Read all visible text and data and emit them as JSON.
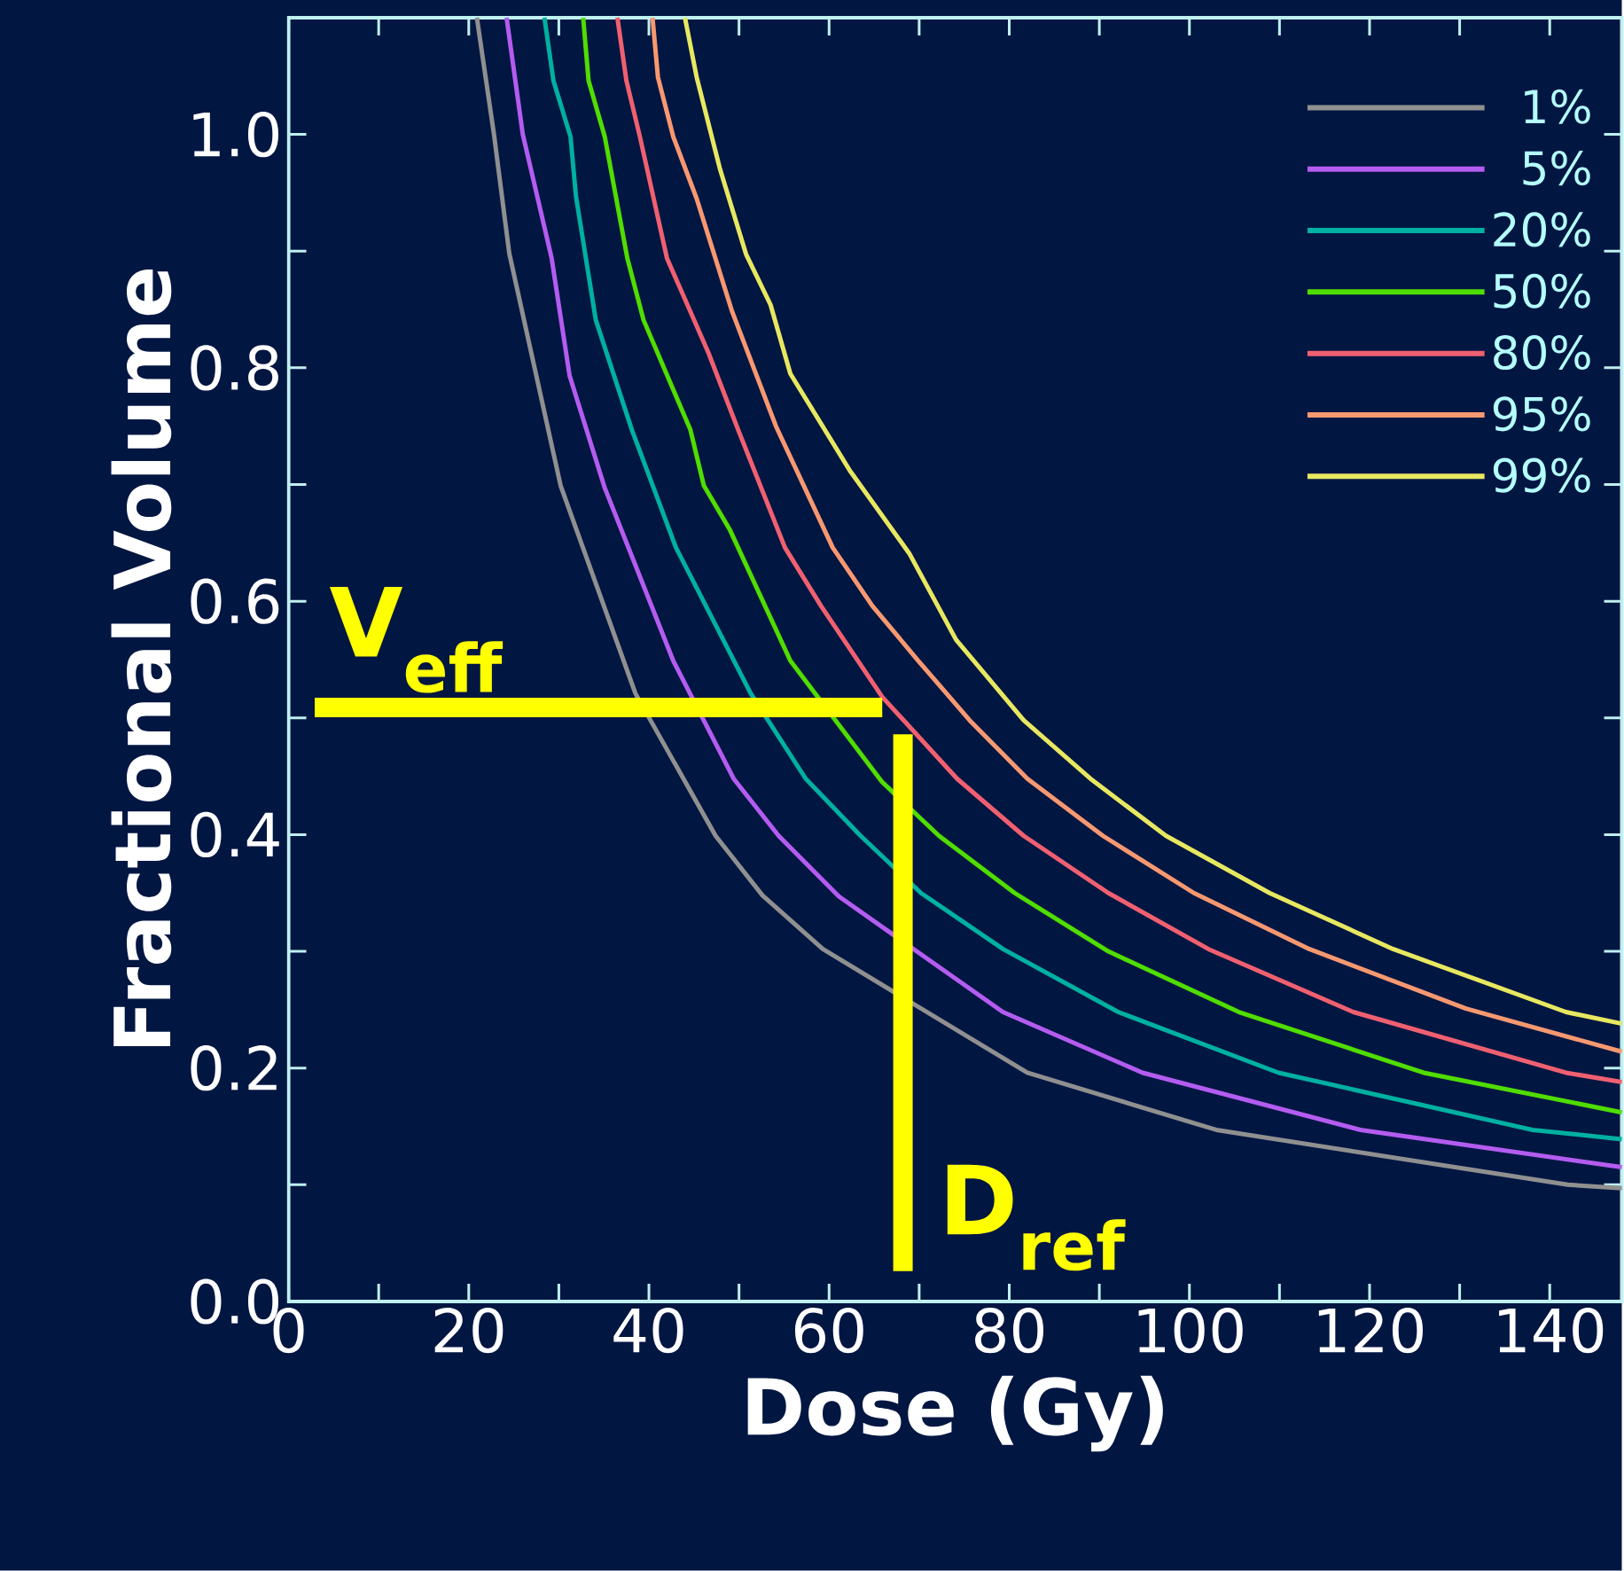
{
  "chart_data": {
    "type": "line",
    "xlabel": "Dose (Gy)",
    "ylabel": "Fractional Volume",
    "xlim": [
      0,
      148
    ],
    "ylim": [
      0,
      1.1
    ],
    "xticks": [
      0,
      {
        "value": 10,
        "label": null
      },
      20,
      {
        "value": 30,
        "label": null
      },
      40,
      {
        "value": 50,
        "label": null
      },
      60,
      {
        "value": 70,
        "label": null
      },
      80,
      {
        "value": 90,
        "label": null
      },
      100,
      {
        "value": 110,
        "label": null
      },
      120,
      {
        "value": 130,
        "label": null
      },
      140
    ],
    "yticks": [
      {
        "value": 0,
        "label": "0.0"
      },
      {
        "value": 0.1,
        "label": null
      },
      {
        "value": 0.2,
        "label": "0.2"
      },
      {
        "value": 0.3,
        "label": null
      },
      {
        "value": 0.4,
        "label": "0.4"
      },
      {
        "value": 0.5,
        "label": null
      },
      {
        "value": 0.6,
        "label": "0.6"
      },
      {
        "value": 0.7,
        "label": null
      },
      {
        "value": 0.8,
        "label": "0.8"
      },
      {
        "value": 0.9,
        "label": null
      },
      {
        "value": 1.0,
        "label": "1.0"
      }
    ],
    "legend": "top right",
    "series": [
      {
        "name": "1%",
        "color": "#909090",
        "x": [
          20.9,
          22.8,
          24.5,
          30.2,
          38.5,
          47.4,
          52.6,
          59.3,
          82,
          103,
          142,
          148
        ],
        "values": [
          1.1,
          1.0,
          0.898,
          0.699,
          0.521,
          0.399,
          0.348,
          0.302,
          0.196,
          0.147,
          0.1,
          0.097
        ]
      },
      {
        "name": "5%",
        "color": "#b45cf0",
        "x": [
          24.2,
          26,
          29.2,
          31.2,
          35.1,
          42.7,
          49.4,
          54.4,
          61.1,
          79.3,
          94.8,
          119,
          148
        ],
        "values": [
          1.1,
          1.0,
          0.894,
          0.793,
          0.697,
          0.549,
          0.448,
          0.399,
          0.347,
          0.248,
          0.196,
          0.147,
          0.115
        ]
      },
      {
        "name": "20%",
        "color": "#00b0a0",
        "x": [
          28.4,
          29.4,
          31.3,
          31.9,
          34.1,
          38.1,
          43,
          51.3,
          57.4,
          63.5,
          70.2,
          79.3,
          92.1,
          109.9,
          138.1,
          148
        ],
        "values": [
          1.1,
          1.046,
          0.998,
          0.947,
          0.841,
          0.747,
          0.646,
          0.521,
          0.448,
          0.399,
          0.35,
          0.302,
          0.248,
          0.196,
          0.147,
          0.139
        ]
      },
      {
        "name": "50%",
        "color": "#50dd00",
        "x": [
          32.7,
          33.3,
          35.1,
          37.6,
          39.4,
          44.6,
          46.1,
          49,
          55.7,
          65.9,
          72.2,
          80.6,
          91,
          105.5,
          126,
          148
        ],
        "values": [
          1.1,
          1.046,
          0.998,
          0.894,
          0.841,
          0.747,
          0.699,
          0.661,
          0.549,
          0.445,
          0.399,
          0.35,
          0.3,
          0.248,
          0.196,
          0.162
        ]
      },
      {
        "name": "80%",
        "color": "#f06070",
        "x": [
          36.5,
          37.5,
          39,
          42,
          46.6,
          49.9,
          55.1,
          59.1,
          65.9,
          74.2,
          81.6,
          91,
          102.1,
          118.2,
          141.8,
          148
        ],
        "values": [
          1.1,
          1.046,
          0.998,
          0.894,
          0.813,
          0.747,
          0.646,
          0.596,
          0.518,
          0.448,
          0.399,
          0.35,
          0.302,
          0.248,
          0.196,
          0.188
        ]
      },
      {
        "name": "95%",
        "color": "#f89870",
        "x": [
          40.4,
          41,
          42.7,
          45.3,
          49.2,
          54.1,
          60.4,
          64.8,
          69.9,
          75.6,
          82,
          90.4,
          100.5,
          113.3,
          130.7,
          148
        ],
        "values": [
          1.1,
          1.049,
          0.998,
          0.945,
          0.849,
          0.75,
          0.646,
          0.596,
          0.549,
          0.498,
          0.448,
          0.399,
          0.35,
          0.302,
          0.251,
          0.214
        ]
      },
      {
        "name": "99%",
        "color": "#e8e860",
        "x": [
          44,
          45.3,
          47.9,
          50.8,
          53.5,
          55.7,
          62.3,
          68.9,
          74.1,
          81.6,
          89,
          97.4,
          108.9,
          122.6,
          141.8,
          148
        ],
        "values": [
          1.1,
          1.049,
          0.97,
          0.897,
          0.854,
          0.795,
          0.712,
          0.641,
          0.567,
          0.498,
          0.448,
          0.399,
          0.35,
          0.302,
          0.248,
          0.238
        ]
      },
      {
        "color": "#ffff00",
        "x": [
          2.9,
          65.9
        ],
        "values": [
          0.509,
          0.509
        ]
      },
      {
        "color": "#ffff00",
        "x": [
          68.2,
          68.2
        ],
        "values": [
          0.026,
          0.486
        ]
      }
    ],
    "annotations": [
      "V$_{eff}$",
      "D$_{ref}$"
    ]
  }
}
